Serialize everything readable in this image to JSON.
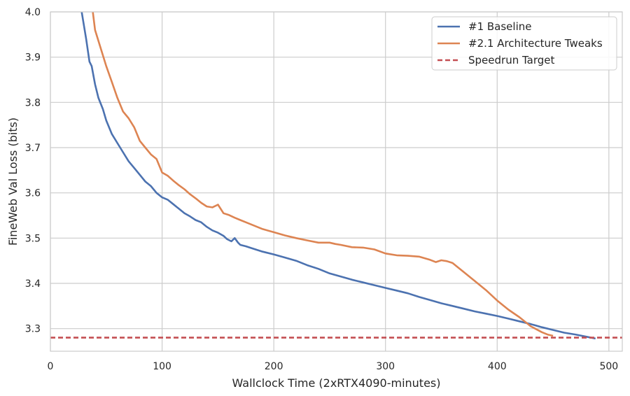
{
  "chart_data": {
    "type": "line",
    "xlabel": "Wallclock Time (2xRTX4090-minutes)",
    "ylabel": "FineWeb Val Loss (bits)",
    "xlim": [
      0,
      512
    ],
    "ylim": [
      3.25,
      4.0
    ],
    "xticks": [
      0,
      100,
      200,
      300,
      400,
      500
    ],
    "yticks": [
      3.3,
      3.4,
      3.5,
      3.6,
      3.7,
      3.8,
      3.9,
      4.0
    ],
    "grid": true,
    "legend_position": "top-right",
    "series": [
      {
        "name": "#1 Baseline",
        "color": "#4C72B0",
        "style": "solid",
        "points": [
          [
            28,
            4.0
          ],
          [
            30,
            3.97
          ],
          [
            32,
            3.94
          ],
          [
            35,
            3.89
          ],
          [
            37,
            3.88
          ],
          [
            40,
            3.84
          ],
          [
            43,
            3.81
          ],
          [
            47,
            3.785
          ],
          [
            50,
            3.76
          ],
          [
            55,
            3.73
          ],
          [
            60,
            3.71
          ],
          [
            65,
            3.69
          ],
          [
            70,
            3.67
          ],
          [
            75,
            3.655
          ],
          [
            80,
            3.64
          ],
          [
            85,
            3.625
          ],
          [
            90,
            3.615
          ],
          [
            95,
            3.6
          ],
          [
            100,
            3.59
          ],
          [
            105,
            3.585
          ],
          [
            110,
            3.575
          ],
          [
            115,
            3.565
          ],
          [
            120,
            3.555
          ],
          [
            125,
            3.548
          ],
          [
            130,
            3.54
          ],
          [
            135,
            3.535
          ],
          [
            140,
            3.525
          ],
          [
            145,
            3.517
          ],
          [
            150,
            3.512
          ],
          [
            155,
            3.505
          ],
          [
            158,
            3.498
          ],
          [
            162,
            3.493
          ],
          [
            165,
            3.5
          ],
          [
            168,
            3.49
          ],
          [
            170,
            3.485
          ],
          [
            175,
            3.482
          ],
          [
            180,
            3.478
          ],
          [
            190,
            3.47
          ],
          [
            200,
            3.464
          ],
          [
            210,
            3.457
          ],
          [
            220,
            3.45
          ],
          [
            230,
            3.44
          ],
          [
            240,
            3.432
          ],
          [
            250,
            3.422
          ],
          [
            260,
            3.415
          ],
          [
            270,
            3.408
          ],
          [
            280,
            3.402
          ],
          [
            290,
            3.396
          ],
          [
            300,
            3.39
          ],
          [
            310,
            3.384
          ],
          [
            320,
            3.378
          ],
          [
            330,
            3.37
          ],
          [
            340,
            3.363
          ],
          [
            350,
            3.356
          ],
          [
            360,
            3.35
          ],
          [
            370,
            3.344
          ],
          [
            380,
            3.338
          ],
          [
            390,
            3.333
          ],
          [
            400,
            3.328
          ],
          [
            410,
            3.322
          ],
          [
            420,
            3.316
          ],
          [
            430,
            3.31
          ],
          [
            440,
            3.303
          ],
          [
            450,
            3.297
          ],
          [
            460,
            3.291
          ],
          [
            470,
            3.287
          ],
          [
            480,
            3.282
          ],
          [
            488,
            3.278
          ]
        ]
      },
      {
        "name": "#2.1 Architecture Tweaks",
        "color": "#DD8452",
        "style": "solid",
        "points": [
          [
            38,
            4.0
          ],
          [
            40,
            3.96
          ],
          [
            45,
            3.92
          ],
          [
            50,
            3.88
          ],
          [
            55,
            3.845
          ],
          [
            60,
            3.81
          ],
          [
            65,
            3.78
          ],
          [
            70,
            3.765
          ],
          [
            75,
            3.745
          ],
          [
            80,
            3.715
          ],
          [
            85,
            3.7
          ],
          [
            90,
            3.685
          ],
          [
            95,
            3.675
          ],
          [
            100,
            3.645
          ],
          [
            105,
            3.638
          ],
          [
            110,
            3.627
          ],
          [
            115,
            3.617
          ],
          [
            120,
            3.608
          ],
          [
            125,
            3.597
          ],
          [
            130,
            3.588
          ],
          [
            135,
            3.578
          ],
          [
            140,
            3.57
          ],
          [
            145,
            3.568
          ],
          [
            150,
            3.574
          ],
          [
            155,
            3.555
          ],
          [
            160,
            3.551
          ],
          [
            165,
            3.545
          ],
          [
            170,
            3.54
          ],
          [
            175,
            3.535
          ],
          [
            180,
            3.53
          ],
          [
            190,
            3.52
          ],
          [
            200,
            3.513
          ],
          [
            210,
            3.506
          ],
          [
            220,
            3.5
          ],
          [
            230,
            3.495
          ],
          [
            240,
            3.49
          ],
          [
            250,
            3.49
          ],
          [
            255,
            3.487
          ],
          [
            260,
            3.485
          ],
          [
            270,
            3.48
          ],
          [
            280,
            3.479
          ],
          [
            290,
            3.475
          ],
          [
            300,
            3.466
          ],
          [
            310,
            3.462
          ],
          [
            320,
            3.461
          ],
          [
            330,
            3.459
          ],
          [
            340,
            3.452
          ],
          [
            345,
            3.447
          ],
          [
            350,
            3.451
          ],
          [
            355,
            3.449
          ],
          [
            360,
            3.445
          ],
          [
            370,
            3.425
          ],
          [
            380,
            3.405
          ],
          [
            390,
            3.385
          ],
          [
            400,
            3.362
          ],
          [
            410,
            3.342
          ],
          [
            420,
            3.325
          ],
          [
            430,
            3.305
          ],
          [
            440,
            3.292
          ],
          [
            445,
            3.287
          ],
          [
            450,
            3.284
          ]
        ]
      },
      {
        "name": "Speedrun Target",
        "color": "#C44E52",
        "style": "dashed",
        "points": [
          [
            0,
            3.28
          ],
          [
            512,
            3.28
          ]
        ]
      }
    ]
  }
}
